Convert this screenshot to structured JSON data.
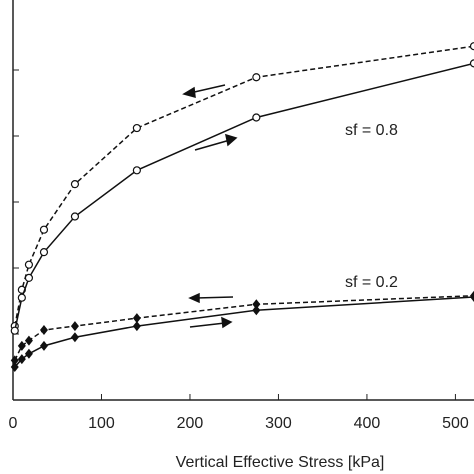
{
  "chart_data": {
    "type": "line",
    "x_label": "Vertical Effective Stress [kPa]",
    "annotations": [
      "sf = 0.8",
      "sf = 0.2"
    ],
    "xlim": [
      0,
      521
    ],
    "ylim": [
      0,
      6.06
    ],
    "xticks": [
      0,
      100,
      200,
      300,
      400,
      500
    ],
    "series": [
      {
        "color": "#111",
        "style": "dashed",
        "marker": "circle",
        "x": [
          2,
          10,
          18,
          35,
          70,
          140,
          275,
          521
        ],
        "values": [
          1.12,
          1.67,
          2.05,
          2.58,
          3.27,
          4.12,
          4.89,
          5.36
        ]
      },
      {
        "color": "#111",
        "style": "solid",
        "marker": "circle",
        "x": [
          2,
          10,
          18,
          35,
          70,
          140,
          275,
          521
        ],
        "values": [
          1.05,
          1.55,
          1.85,
          2.24,
          2.78,
          3.48,
          4.28,
          5.1
        ]
      },
      {
        "color": "#111",
        "style": "dashed",
        "marker": "diamond",
        "x": [
          2,
          10,
          18,
          35,
          70,
          140,
          275,
          521
        ],
        "values": [
          0.6,
          0.82,
          0.9,
          1.06,
          1.12,
          1.24,
          1.45,
          1.58
        ]
      },
      {
        "color": "#111",
        "style": "solid",
        "marker": "diamond",
        "x": [
          2,
          10,
          18,
          35,
          70,
          140,
          275,
          521
        ],
        "values": [
          0.5,
          0.62,
          0.7,
          0.82,
          0.95,
          1.12,
          1.36,
          1.56
        ]
      }
    ]
  }
}
